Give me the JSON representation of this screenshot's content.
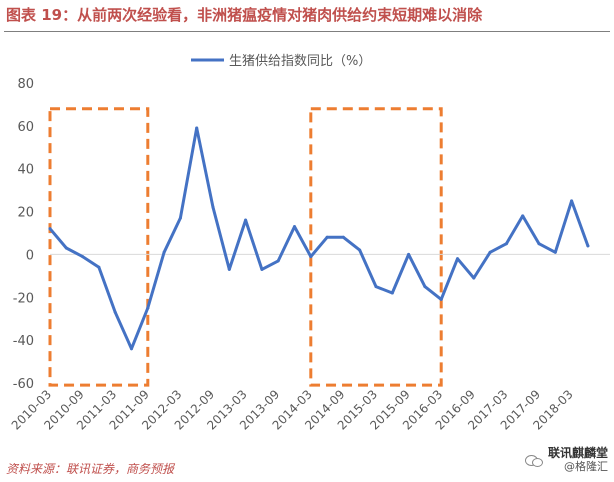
{
  "page": {
    "title": "图表 19：从前两次经验看，非洲猪瘟疫情对猪肉供给约束短期难以消除",
    "source": "资料来源：联讯证券，商务预报",
    "watermark": {
      "icon": "wechat-icon",
      "line1": "联讯麒麟堂",
      "line2": "@格隆汇"
    }
  },
  "colors": {
    "title": "#c0504d",
    "series": "#4472c4",
    "highlight_box": "#ed7d31",
    "axis_text": "#595959"
  },
  "chart_data": {
    "type": "line",
    "title": "",
    "xlabel": "",
    "ylabel": "",
    "ylim": [
      -60,
      80
    ],
    "yticks": [
      -60,
      -40,
      -20,
      0,
      20,
      40,
      60,
      80
    ],
    "grid": false,
    "legend": {
      "position": "top-center",
      "entries": [
        "生猪供给指数同比（%）"
      ]
    },
    "x_tick_labels": [
      "2010-03",
      "2010-09",
      "2011-03",
      "2011-09",
      "2012-03",
      "2012-09",
      "2013-03",
      "2013-09",
      "2014-03",
      "2014-09",
      "2015-03",
      "2015-09",
      "2016-03",
      "2016-09",
      "2017-03",
      "2017-09",
      "2018-03"
    ],
    "x": [
      "2010-03",
      "2010-06",
      "2010-09",
      "2010-12",
      "2011-03",
      "2011-06",
      "2011-09",
      "2011-12",
      "2012-03",
      "2012-06",
      "2012-09",
      "2012-12",
      "2013-03",
      "2013-06",
      "2013-09",
      "2013-12",
      "2014-03",
      "2014-06",
      "2014-09",
      "2014-12",
      "2015-03",
      "2015-06",
      "2015-09",
      "2015-12",
      "2016-03",
      "2016-06",
      "2016-09",
      "2016-12",
      "2017-03",
      "2017-06",
      "2017-09",
      "2017-12",
      "2018-03",
      "2018-06"
    ],
    "series": [
      {
        "name": "生猪供给指数同比（%）",
        "values": [
          12,
          3,
          -1,
          -6,
          -27,
          -44,
          -25,
          1,
          17,
          59,
          22,
          -7,
          16,
          -7,
          -3,
          13,
          -1,
          8,
          8,
          2,
          -15,
          -18,
          0,
          -15,
          -21,
          -2,
          -11,
          1,
          5,
          18,
          5,
          1,
          25,
          4
        ]
      }
    ],
    "highlight_ranges": [
      {
        "x_start": "2010-03",
        "x_end": "2011-09",
        "y_start": -61,
        "y_end": 68
      },
      {
        "x_start": "2014-03",
        "x_end": "2016-03",
        "y_start": -61,
        "y_end": 68
      }
    ]
  }
}
